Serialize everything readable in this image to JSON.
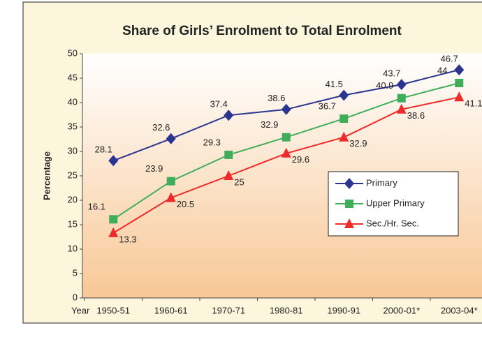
{
  "chart_data": {
    "type": "line",
    "title": "Share of Girls’ Enrolment to Total Enrolment",
    "xlabel": "Year",
    "ylabel": "Percentage",
    "categories": [
      "1950-51",
      "1960-61",
      "1970-71",
      "1980-81",
      "1990-91",
      "2000-01*",
      "2003-04*"
    ],
    "series": [
      {
        "name": "Primary",
        "color": "#2b3590",
        "marker": "diamond",
        "values": [
          28.1,
          32.6,
          37.4,
          38.6,
          41.5,
          43.7,
          46.7
        ]
      },
      {
        "name": "Upper Primary",
        "color": "#3fae5a",
        "marker": "square",
        "values": [
          16.1,
          23.9,
          29.3,
          32.9,
          36.7,
          40.9,
          44
        ]
      },
      {
        "name": "Sec./Hr. Sec.",
        "color": "#ee2a2a",
        "marker": "triangle",
        "values": [
          13.3,
          20.5,
          25,
          29.6,
          32.9,
          38.6,
          41.1
        ]
      }
    ],
    "ylim": [
      0,
      50
    ],
    "yticks": [
      0,
      5,
      10,
      15,
      20,
      25,
      30,
      35,
      40,
      45,
      50
    ],
    "grid": false
  }
}
